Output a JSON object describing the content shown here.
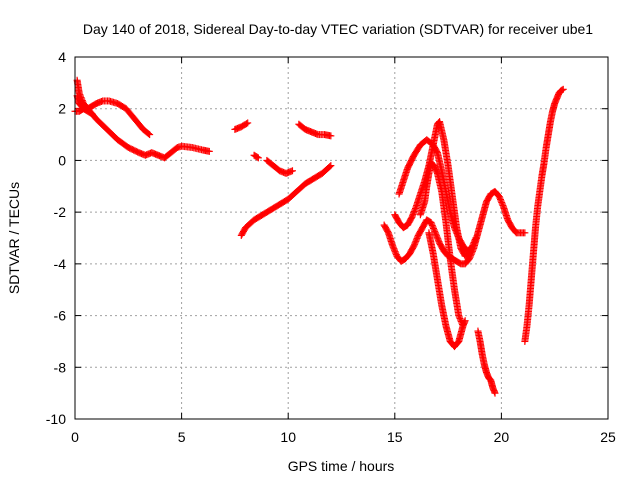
{
  "chart_data": {
    "type": "scatter",
    "title": "Day 140 of 2018, Sidereal Day-to-day VTEC variation (SDTVAR) for receiver ube1",
    "xlabel": "GPS time / hours",
    "ylabel": "SDTVAR / TECUs",
    "xlim": [
      0,
      25
    ],
    "ylim": [
      -10,
      4
    ],
    "xticks": [
      0,
      5,
      10,
      15,
      20,
      25
    ],
    "yticks": [
      -10,
      -8,
      -6,
      -4,
      -2,
      0,
      2,
      4
    ],
    "grid": true,
    "marker": "plus",
    "color": "#ff0000",
    "tracks": [
      [
        [
          0.1,
          3.1
        ],
        [
          0.2,
          2.6
        ],
        [
          0.4,
          2.2
        ],
        [
          0.7,
          1.9
        ],
        [
          1.0,
          1.6
        ],
        [
          1.5,
          1.2
        ],
        [
          2.0,
          0.8
        ],
        [
          2.5,
          0.5
        ],
        [
          3.0,
          0.3
        ],
        [
          3.3,
          0.2
        ],
        [
          3.6,
          0.3
        ],
        [
          3.9,
          0.2
        ],
        [
          4.2,
          0.1
        ],
        [
          4.5,
          0.3
        ],
        [
          4.8,
          0.5
        ],
        [
          5.0,
          0.55
        ],
        [
          5.5,
          0.5
        ],
        [
          6.0,
          0.4
        ],
        [
          6.3,
          0.35
        ]
      ],
      [
        [
          0.1,
          2.5
        ],
        [
          0.2,
          2.2
        ],
        [
          0.4,
          2.0
        ],
        [
          0.6,
          2.0
        ],
        [
          0.8,
          2.1
        ],
        [
          1.0,
          2.2
        ],
        [
          1.3,
          2.3
        ],
        [
          1.6,
          2.3
        ],
        [
          2.0,
          2.2
        ],
        [
          2.4,
          2.0
        ],
        [
          2.8,
          1.6
        ],
        [
          3.2,
          1.2
        ],
        [
          3.5,
          1.0
        ]
      ],
      [
        [
          0.0,
          1.9
        ],
        [
          0.2,
          1.9
        ],
        [
          0.4,
          2.0
        ],
        [
          0.6,
          1.9
        ],
        [
          0.8,
          1.8
        ]
      ],
      [
        [
          7.5,
          1.2
        ],
        [
          7.8,
          1.3
        ],
        [
          8.1,
          1.45
        ]
      ],
      [
        [
          8.4,
          0.2
        ],
        [
          8.6,
          0.1
        ]
      ],
      [
        [
          9.0,
          0.0
        ],
        [
          9.3,
          -0.2
        ],
        [
          9.6,
          -0.4
        ],
        [
          9.9,
          -0.5
        ],
        [
          10.2,
          -0.4
        ]
      ],
      [
        [
          7.8,
          -2.9
        ],
        [
          8.0,
          -2.6
        ],
        [
          8.4,
          -2.3
        ],
        [
          8.8,
          -2.1
        ],
        [
          9.2,
          -1.9
        ],
        [
          9.6,
          -1.7
        ],
        [
          10.0,
          -1.5
        ],
        [
          10.4,
          -1.2
        ],
        [
          10.8,
          -0.9
        ],
        [
          11.2,
          -0.7
        ],
        [
          11.6,
          -0.5
        ],
        [
          12.0,
          -0.2
        ]
      ],
      [
        [
          10.5,
          1.4
        ],
        [
          10.8,
          1.2
        ],
        [
          11.1,
          1.1
        ],
        [
          11.4,
          1.0
        ],
        [
          11.7,
          1.0
        ],
        [
          12.0,
          0.95
        ]
      ],
      [
        [
          14.5,
          -2.5
        ],
        [
          14.7,
          -2.8
        ],
        [
          14.9,
          -3.3
        ],
        [
          15.1,
          -3.7
        ],
        [
          15.3,
          -3.9
        ],
        [
          15.5,
          -3.8
        ],
        [
          15.7,
          -3.6
        ],
        [
          15.9,
          -3.3
        ],
        [
          16.1,
          -2.9
        ],
        [
          16.3,
          -2.6
        ],
        [
          16.5,
          -2.3
        ],
        [
          16.7,
          -2.4
        ],
        [
          16.9,
          -2.8
        ],
        [
          17.1,
          -3.2
        ],
        [
          17.3,
          -3.5
        ],
        [
          17.5,
          -3.7
        ],
        [
          17.7,
          -3.8
        ],
        [
          17.9,
          -3.9
        ],
        [
          18.1,
          -4.0
        ],
        [
          18.3,
          -4.0
        ],
        [
          18.5,
          -3.8
        ],
        [
          18.7,
          -3.4
        ],
        [
          18.9,
          -2.8
        ],
        [
          19.1,
          -2.2
        ],
        [
          19.3,
          -1.6
        ],
        [
          19.5,
          -1.3
        ],
        [
          19.7,
          -1.2
        ],
        [
          19.9,
          -1.4
        ],
        [
          20.1,
          -1.8
        ],
        [
          20.3,
          -2.3
        ],
        [
          20.5,
          -2.6
        ],
        [
          20.7,
          -2.8
        ],
        [
          20.9,
          -2.8
        ],
        [
          21.1,
          -2.8
        ]
      ],
      [
        [
          15.0,
          -2.1
        ],
        [
          15.2,
          -2.4
        ],
        [
          15.4,
          -2.6
        ],
        [
          15.6,
          -2.5
        ],
        [
          15.8,
          -2.2
        ],
        [
          16.0,
          -1.8
        ],
        [
          16.2,
          -1.3
        ],
        [
          16.4,
          -0.8
        ],
        [
          16.6,
          -0.2
        ],
        [
          16.8,
          0.6
        ],
        [
          17.0,
          1.4
        ],
        [
          17.1,
          1.5
        ],
        [
          17.3,
          0.8
        ],
        [
          17.5,
          -0.2
        ],
        [
          17.7,
          -1.4
        ],
        [
          17.9,
          -2.6
        ],
        [
          18.1,
          -3.4
        ],
        [
          18.3,
          -3.7
        ],
        [
          18.5,
          -3.6
        ]
      ],
      [
        [
          15.2,
          -1.3
        ],
        [
          15.4,
          -0.8
        ],
        [
          15.6,
          -0.3
        ],
        [
          15.9,
          0.2
        ],
        [
          16.2,
          0.6
        ],
        [
          16.5,
          0.8
        ],
        [
          16.8,
          0.6
        ],
        [
          17.0,
          0.3
        ],
        [
          17.2,
          -0.4
        ],
        [
          17.4,
          -1.2
        ],
        [
          17.6,
          -2.0
        ],
        [
          17.8,
          -2.6
        ],
        [
          18.0,
          -3.0
        ],
        [
          18.2,
          -3.3
        ],
        [
          18.4,
          -3.5
        ],
        [
          18.6,
          -3.4
        ],
        [
          18.8,
          -3.0
        ]
      ],
      [
        [
          16.2,
          -2.1
        ],
        [
          16.4,
          -1.6
        ],
        [
          16.5,
          -1.0
        ],
        [
          16.6,
          -0.5
        ],
        [
          16.7,
          -0.1
        ],
        [
          16.85,
          -0.2
        ],
        [
          17.0,
          -0.5
        ],
        [
          17.2,
          -1.2
        ],
        [
          17.4,
          -2.4
        ],
        [
          17.6,
          -3.8
        ],
        [
          17.8,
          -5.0
        ],
        [
          18.0,
          -6.0
        ],
        [
          18.2,
          -6.4
        ],
        [
          18.3,
          -6.2
        ]
      ],
      [
        [
          16.6,
          -2.8
        ],
        [
          16.8,
          -3.6
        ],
        [
          17.0,
          -4.6
        ],
        [
          17.2,
          -5.6
        ],
        [
          17.4,
          -6.4
        ],
        [
          17.6,
          -7.0
        ],
        [
          17.8,
          -7.2
        ],
        [
          18.0,
          -7.0
        ],
        [
          18.2,
          -6.4
        ]
      ],
      [
        [
          18.9,
          -6.6
        ],
        [
          19.0,
          -7.0
        ],
        [
          19.1,
          -7.5
        ],
        [
          19.2,
          -7.9
        ],
        [
          19.3,
          -8.2
        ],
        [
          19.4,
          -8.4
        ],
        [
          19.5,
          -8.5
        ],
        [
          19.6,
          -8.8
        ],
        [
          19.7,
          -9.0
        ]
      ],
      [
        [
          21.1,
          -7.0
        ],
        [
          21.2,
          -6.4
        ],
        [
          21.3,
          -5.6
        ],
        [
          21.4,
          -4.6
        ],
        [
          21.5,
          -3.6
        ],
        [
          21.6,
          -2.6
        ],
        [
          21.7,
          -1.8
        ],
        [
          21.8,
          -1.2
        ],
        [
          21.9,
          -0.6
        ],
        [
          22.0,
          -0.1
        ],
        [
          22.1,
          0.5
        ],
        [
          22.2,
          1.0
        ],
        [
          22.3,
          1.5
        ],
        [
          22.4,
          1.9
        ],
        [
          22.5,
          2.2
        ],
        [
          22.6,
          2.4
        ],
        [
          22.7,
          2.6
        ],
        [
          22.8,
          2.7
        ],
        [
          22.9,
          2.75
        ]
      ]
    ]
  }
}
